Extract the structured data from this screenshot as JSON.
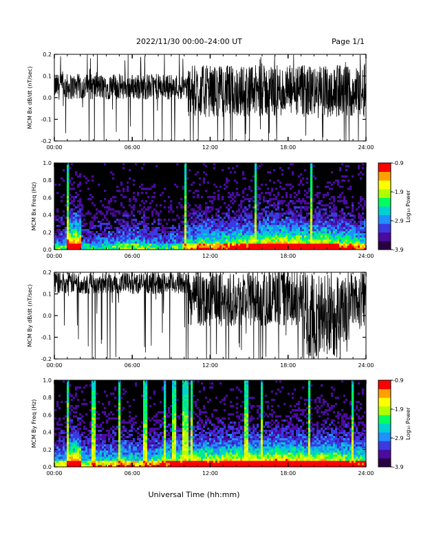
{
  "header": {
    "title": "2022/11/30  00:00–24:00 UT",
    "page": "Page 1/1"
  },
  "footer": {
    "xlabel": "Universal Time (hh:mm)"
  },
  "colors": {
    "trace": "#000000",
    "spectrogram_background": "#000000",
    "colormap": [
      "#2a0044",
      "#4b0aa0",
      "#3a3ae0",
      "#1e90ff",
      "#00d0d0",
      "#00ff60",
      "#b0ff00",
      "#ffff00",
      "#ffa000",
      "#ff0000"
    ]
  },
  "chart_data": [
    {
      "type": "line",
      "ylabel": "MCM Bx dB/dt (nT/sec)",
      "xlim": [
        0,
        24
      ],
      "ylim": [
        -0.2,
        0.2
      ],
      "x_ticks": [
        "00:00",
        "06:00",
        "12:00",
        "18:00",
        "24:00"
      ],
      "y_ticks": [
        "-0.2",
        "-0.1",
        "0.0",
        "0.1",
        "0.2"
      ],
      "grid": false,
      "segments": [
        {
          "x": [
            0,
            10.3
          ],
          "center": 0.05,
          "amplitude": 0.06,
          "spike": 0.22
        },
        {
          "x": [
            10.3,
            24
          ],
          "center": 0.03,
          "amplitude": 0.12,
          "spike": 0.25
        }
      ]
    },
    {
      "type": "heatmap",
      "ylabel": "MCM Bx Freq (Hz)",
      "xlim": [
        0,
        24
      ],
      "ylim": [
        0,
        1.0
      ],
      "x_ticks": [
        "00:00",
        "06:00",
        "12:00",
        "18:00",
        "24:00"
      ],
      "y_ticks": [
        "0.0",
        "0.2",
        "0.4",
        "0.6",
        "0.8",
        "1.0"
      ],
      "colorbar": {
        "label": "Log₁₀ Power",
        "ticks": [
          "-0.9",
          "-1.9",
          "-2.9",
          "-3.9"
        ],
        "range": [
          -3.9,
          -0.9
        ]
      },
      "activity_profile": [
        0.35,
        0.95,
        0.3,
        0.3,
        0.35,
        0.4,
        0.4,
        0.35,
        0.3,
        0.35,
        0.5,
        0.6,
        0.55,
        0.6,
        0.65,
        0.7,
        0.75,
        0.8,
        0.75,
        0.7,
        0.75,
        0.7,
        0.6,
        0.55
      ],
      "bright_columns_h": [
        1.0,
        10.1,
        15.5,
        19.8
      ]
    },
    {
      "type": "line",
      "ylabel": "MCM By dB/dt (nT/sec)",
      "xlim": [
        0,
        24
      ],
      "ylim": [
        -0.2,
        0.2
      ],
      "x_ticks": [
        "00:00",
        "06:00",
        "12:00",
        "18:00",
        "24:00"
      ],
      "y_ticks": [
        "-0.2",
        "-0.1",
        "0.0",
        "0.1",
        "0.2"
      ],
      "grid": false,
      "segments": [
        {
          "x": [
            0,
            10.3
          ],
          "center": 0.15,
          "amplitude": 0.05,
          "spike": 0.3
        },
        {
          "x": [
            10.3,
            19.4
          ],
          "center": 0.08,
          "amplitude": 0.13,
          "spike": 0.3
        },
        {
          "x": [
            19.4,
            22.7
          ],
          "center": 0.0,
          "amplitude": 0.2,
          "spike": 0.3
        },
        {
          "x": [
            22.7,
            24
          ],
          "center": 0.08,
          "amplitude": 0.13,
          "spike": 0.3
        }
      ]
    },
    {
      "type": "heatmap",
      "ylabel": "MCM By Freq (Hz)",
      "xlim": [
        0,
        24
      ],
      "ylim": [
        0,
        1.0
      ],
      "x_ticks": [
        "00:00",
        "06:00",
        "12:00",
        "18:00",
        "24:00"
      ],
      "y_ticks": [
        "0.0",
        "0.2",
        "0.4",
        "0.6",
        "0.8",
        "1.0"
      ],
      "colorbar": {
        "label": "Log₁₀ Power",
        "ticks": [
          "-0.9",
          "-1.9",
          "-2.9",
          "-3.9"
        ],
        "range": [
          -3.9,
          -0.9
        ]
      },
      "activity_profile": [
        0.45,
        0.9,
        0.45,
        0.5,
        0.5,
        0.55,
        0.5,
        0.55,
        0.6,
        0.65,
        0.75,
        0.7,
        0.7,
        0.75,
        0.75,
        0.75,
        0.8,
        0.85,
        0.8,
        0.75,
        0.75,
        0.75,
        0.7,
        0.65
      ],
      "bright_columns_h": [
        1.0,
        3.0,
        5.0,
        7.0,
        8.5,
        9.2,
        10.0,
        10.3,
        10.6,
        14.8,
        16.0,
        19.6,
        23.0
      ]
    }
  ]
}
